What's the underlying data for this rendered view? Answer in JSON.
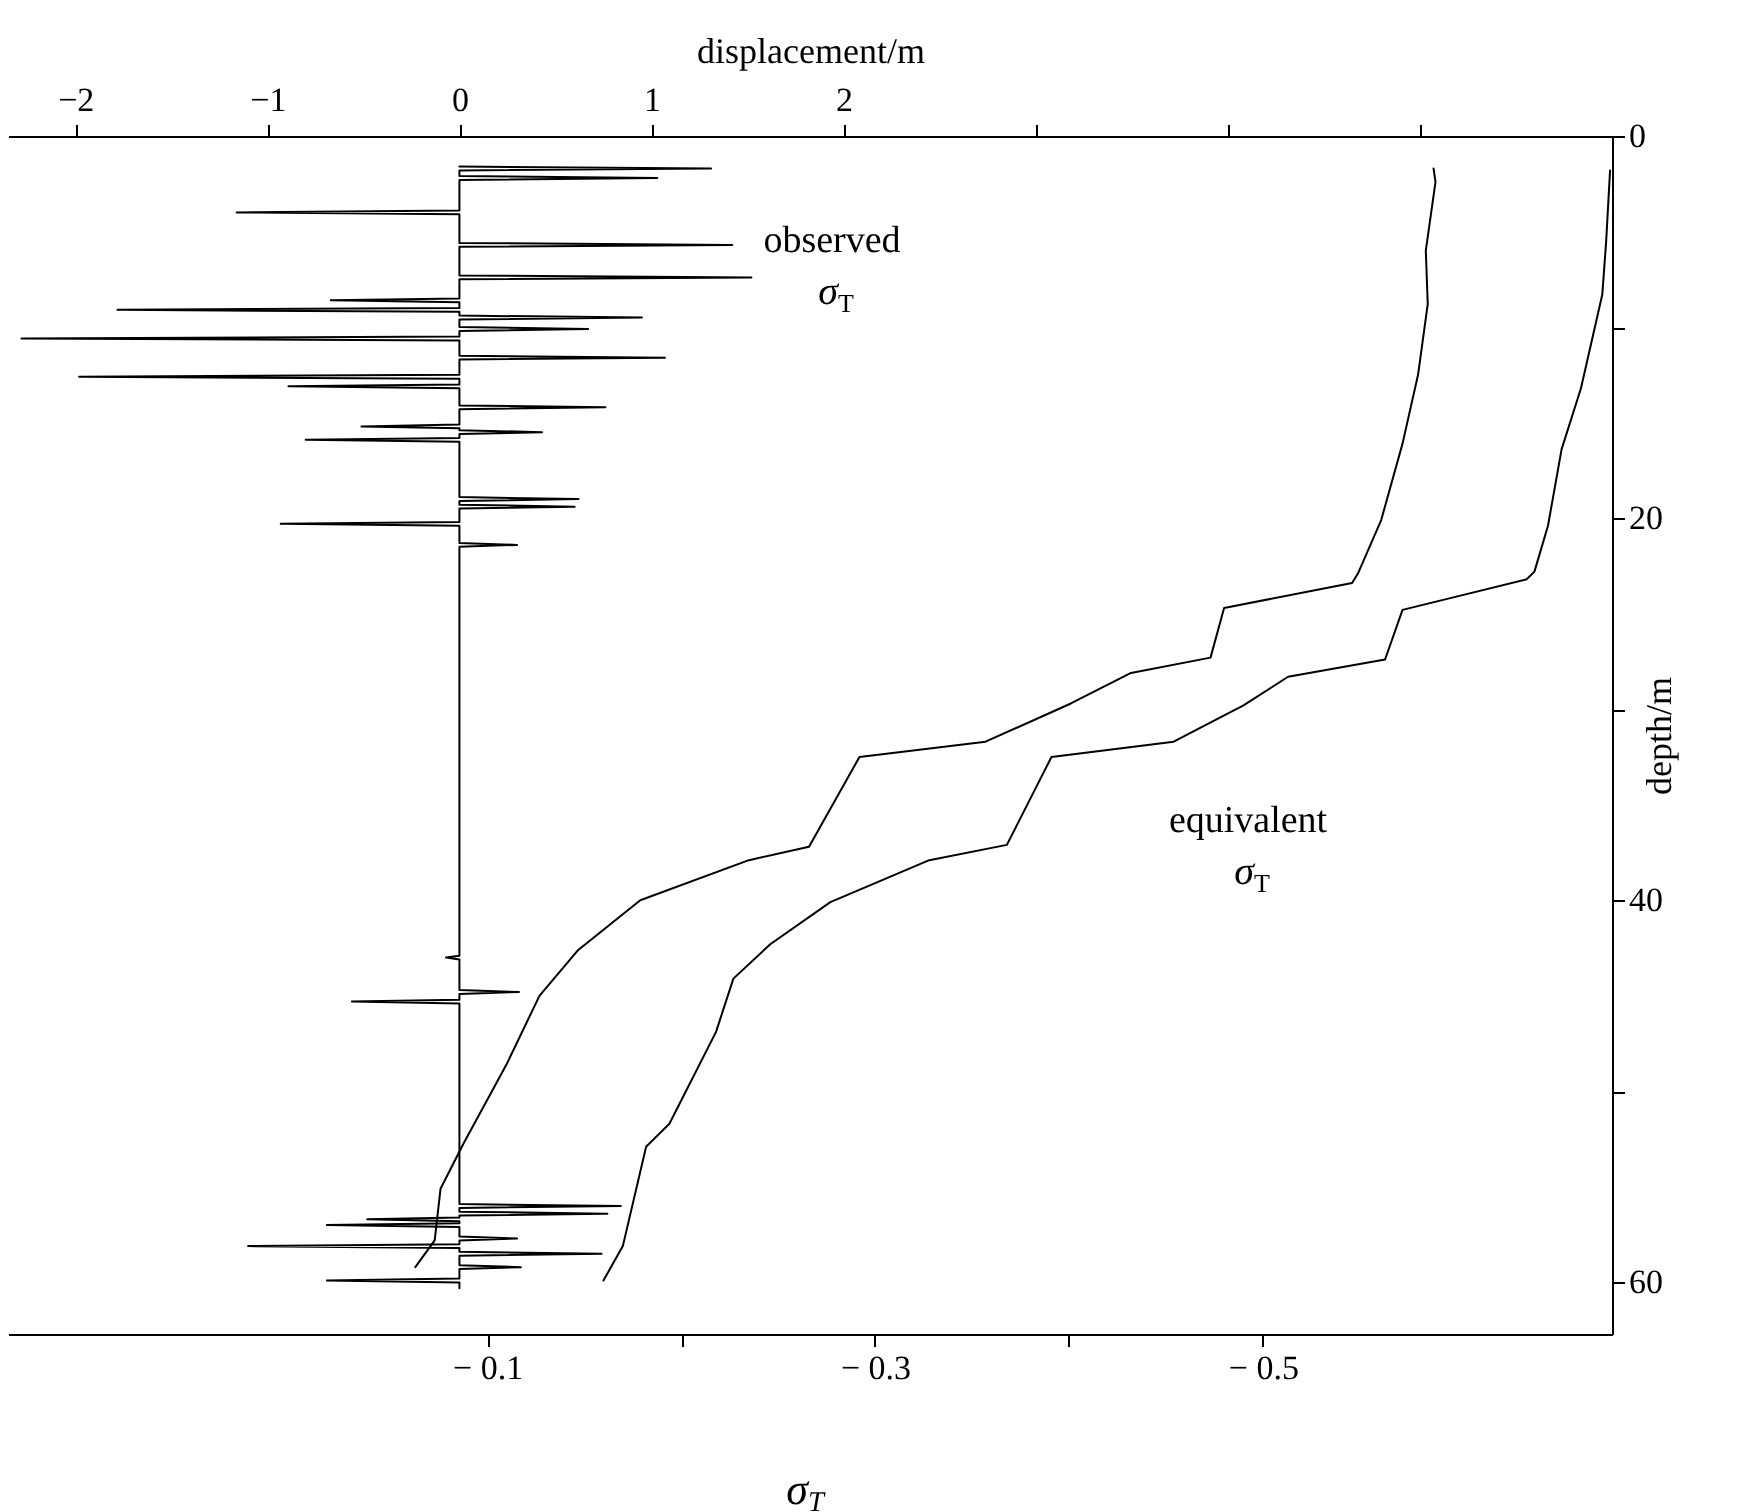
{
  "chart_data": {
    "type": "line",
    "xlabel": "σ$_{T}$",
    "x2label": "displacement/m",
    "ylabel": "depth/m",
    "xlim": [
      0.147,
      -0.68
    ],
    "xticks": [
      {
        "value": -0.1,
        "label": "− 0.1"
      },
      {
        "value": -0.2,
        "label": null
      },
      {
        "value": -0.3,
        "label": "− 0.3"
      },
      {
        "value": -0.4,
        "label": null
      },
      {
        "value": -0.5,
        "label": "− 0.5"
      }
    ],
    "x2lim": [
      -2.35,
      6
    ],
    "x2ticks": [
      -2,
      -1,
      0,
      1,
      2,
      {
        "value": 3,
        "label": null
      },
      {
        "value": 4,
        "label": null
      },
      {
        "value": 5,
        "label": null
      }
    ],
    "ylim": [
      62.7,
      0
    ],
    "yticks": [
      0,
      {
        "value": 10,
        "label": null
      },
      20,
      {
        "value": 30,
        "label": null
      },
      40,
      {
        "value": 50,
        "label": null
      },
      60
    ],
    "grid": false,
    "series": [
      {
        "axis": "x2",
        "color": "#000000",
        "x": [
          0,
          1.31,
          0,
          0,
          1.03,
          0,
          0,
          -1.16,
          0,
          0,
          1.42,
          0,
          0,
          1.52,
          0,
          0,
          -0.67,
          0,
          0,
          -1.78,
          0,
          0,
          0.95,
          0,
          0,
          0.67,
          0,
          0,
          -2.28,
          0,
          0,
          1.07,
          0,
          0,
          -1.98,
          0,
          0,
          -0.89,
          0,
          0,
          0.76,
          0,
          0,
          -0.51,
          0,
          0,
          0.43,
          0,
          0,
          -0.8,
          0,
          0,
          0.62,
          0,
          0,
          0.6,
          0,
          0,
          -0.93,
          0,
          0,
          0.3,
          0,
          0,
          -0.07,
          0,
          0,
          0.31,
          0,
          0,
          -0.56,
          0,
          0,
          0.84,
          0,
          0,
          0.77,
          0,
          0,
          -0.48,
          0,
          0,
          -0.69,
          0,
          0,
          0.3,
          0,
          0,
          -1.1,
          0,
          0,
          0.74,
          0,
          0,
          0.32,
          0,
          0,
          -0.69,
          0,
          0
        ],
        "values": [
          1.6,
          1.7,
          1.8,
          2.1,
          2.2,
          2.3,
          3.9,
          4.0,
          4.1,
          5.6,
          5.7,
          5.8,
          7.3,
          7.4,
          7.5,
          8.5,
          8.6,
          8.7,
          9.0,
          9.1,
          9.2,
          9.4,
          9.5,
          9.6,
          10.0,
          10.1,
          10.2,
          10.5,
          10.6,
          10.7,
          11.5,
          11.6,
          11.7,
          12.5,
          12.6,
          12.7,
          13.0,
          13.1,
          13.2,
          14.1,
          14.2,
          14.3,
          15.1,
          15.2,
          15.3,
          15.4,
          15.5,
          15.6,
          15.8,
          15.9,
          16.0,
          18.9,
          19.0,
          19.1,
          19.3,
          19.4,
          19.5,
          20.2,
          20.3,
          20.4,
          21.3,
          21.4,
          21.5,
          42.9,
          43.0,
          43.1,
          44.7,
          44.8,
          44.9,
          45.2,
          45.3,
          45.4,
          55.9,
          56.0,
          56.1,
          56.3,
          56.4,
          56.5,
          56.6,
          56.7,
          56.8,
          56.9,
          57.0,
          57.1,
          57.6,
          57.7,
          57.8,
          58.0,
          58.1,
          58.2,
          58.4,
          58.5,
          58.6,
          59.1,
          59.2,
          59.3,
          59.8,
          59.9,
          60.0,
          60.3
        ]
      },
      {
        "name": "observed σ$_{T}$",
        "color": "#000000",
        "x": [
          -0.588,
          -0.589,
          -0.584,
          -0.585,
          -0.58,
          -0.572,
          -0.561,
          -0.549,
          -0.546,
          -0.48,
          -0.473,
          -0.432,
          -0.401,
          -0.357,
          -0.292,
          -0.266,
          -0.235,
          -0.179,
          -0.147,
          -0.127,
          -0.11,
          -0.088,
          -0.076,
          -0.073,
          -0.063
        ],
        "values": [
          1.7,
          2.4,
          6.0,
          8.8,
          12.5,
          16.1,
          20.1,
          22.9,
          23.4,
          24.7,
          27.3,
          28.1,
          29.7,
          31.7,
          32.5,
          37.2,
          37.9,
          40.0,
          42.6,
          45.0,
          48.6,
          52.7,
          55.1,
          57.8,
          59.2
        ]
      },
      {
        "name": "equivalent σ$_{T}$",
        "color": "#000000",
        "x": [
          -0.679,
          -0.677,
          -0.675,
          -0.664,
          -0.654,
          -0.647,
          -0.64,
          -0.636,
          -0.572,
          -0.563,
          -0.513,
          -0.49,
          -0.454,
          -0.391,
          -0.368,
          -0.328,
          -0.277,
          -0.246,
          -0.227,
          -0.218,
          -0.194,
          -0.182,
          -0.17,
          -0.16
        ],
        "values": [
          1.8,
          5.5,
          8.3,
          13.2,
          16.4,
          20.4,
          22.8,
          23.2,
          24.8,
          27.4,
          28.3,
          29.8,
          31.7,
          32.5,
          37.1,
          37.9,
          40.1,
          42.3,
          44.1,
          46.9,
          51.7,
          52.9,
          58.1,
          59.9
        ]
      }
    ]
  }
}
